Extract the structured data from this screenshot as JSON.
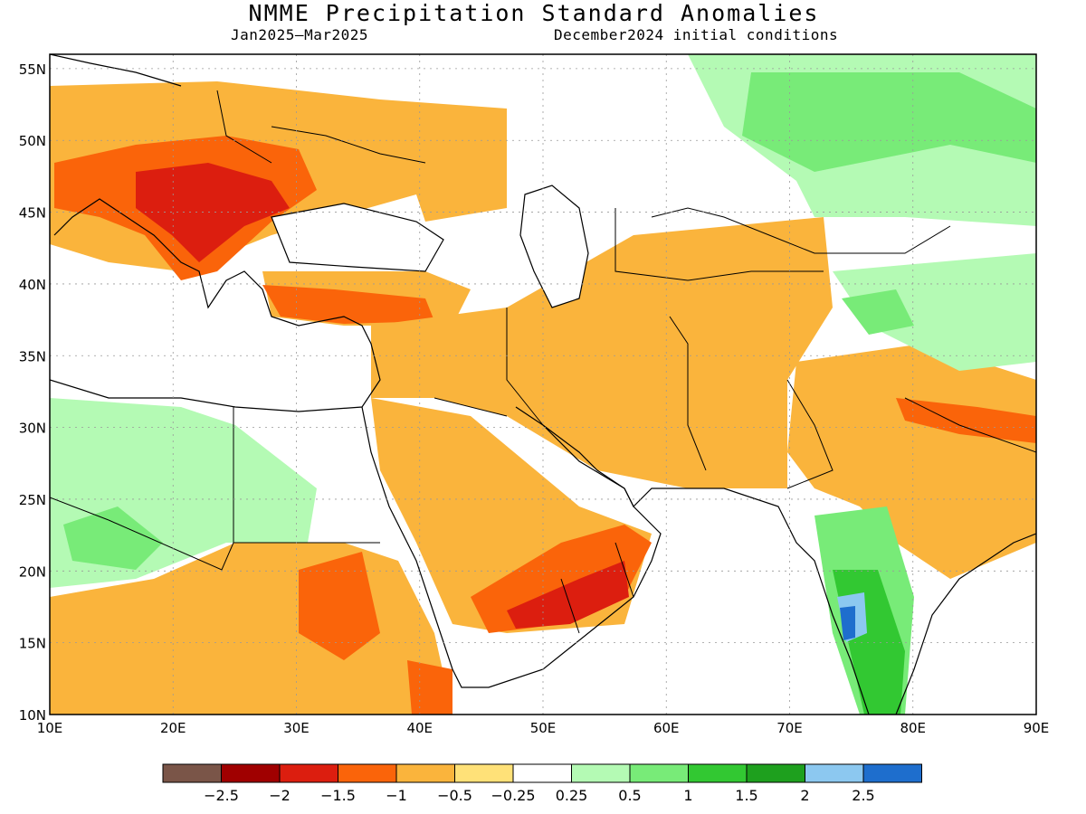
{
  "title": "NMME Precipitation Standard Anomalies",
  "period": "Jan2025–Mar2025",
  "init": "December2024 initial conditions",
  "map": {
    "lon_range": [
      10,
      90
    ],
    "lat_range": [
      10,
      56
    ],
    "x_ticks": [
      "10E",
      "20E",
      "30E",
      "40E",
      "50E",
      "60E",
      "70E",
      "80E",
      "90E"
    ],
    "y_ticks": [
      "10N",
      "15N",
      "20N",
      "25N",
      "30N",
      "35N",
      "40N",
      "45N",
      "50N",
      "55N"
    ]
  },
  "legend": {
    "colors": [
      "#7a5548",
      "#a00000",
      "#dc1e0f",
      "#fa640a",
      "#fab43c",
      "#ffe178",
      "#ffffff",
      "#b4fab4",
      "#78eb78",
      "#32c832",
      "#1ea01e",
      "#8cc8f0",
      "#1e6ecd"
    ],
    "labels": [
      "−2.5",
      "−2",
      "−1.5",
      "−1",
      "−0.5",
      "−0.25",
      "0.25",
      "0.5",
      "1",
      "1.5",
      "2",
      "2.5"
    ]
  }
}
